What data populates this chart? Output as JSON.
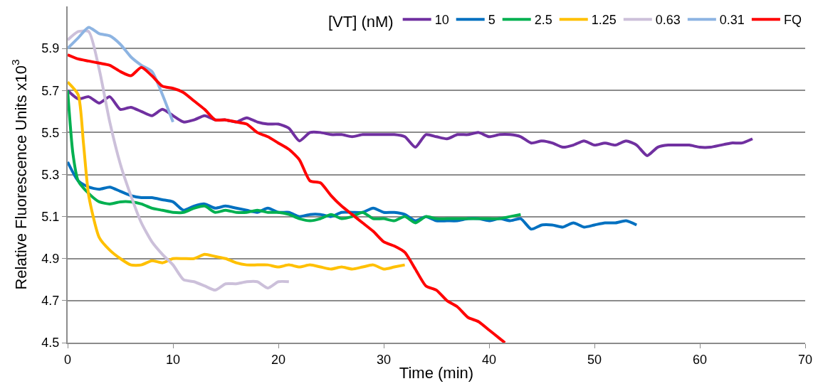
{
  "chart_data": {
    "type": "line",
    "xlabel": "Time (min)",
    "ylabel": "Relative Fluorescence Units x10$^{3}$",
    "legend_title": "[VT] (nM)",
    "legend": "top right",
    "grid": "y",
    "marker": "none",
    "line_style": "solid",
    "xlim": [
      0,
      70
    ],
    "xticks": [
      0,
      10,
      20,
      30,
      40,
      50,
      60,
      70
    ],
    "ylim": [
      4.5,
      6.1
    ],
    "yticks": [
      4.5,
      4.7,
      4.9,
      5.1,
      5.3,
      5.5,
      5.7,
      5.9
    ],
    "series": [
      {
        "name": "10",
        "color": "#7030a0",
        "x": [
          0,
          1,
          2,
          3,
          4,
          5,
          6,
          7,
          8,
          9,
          10,
          11,
          12,
          13,
          14,
          15,
          16,
          17,
          18,
          19,
          20,
          21,
          22,
          23,
          24,
          25,
          26,
          27,
          28,
          29,
          30,
          31,
          32,
          33,
          34,
          35,
          36,
          37,
          38,
          39,
          40,
          41,
          42,
          43,
          44,
          45,
          46,
          47,
          48,
          49,
          50,
          51,
          52,
          53,
          54,
          55,
          56,
          57,
          58,
          59,
          60,
          61,
          62,
          63,
          64,
          65
        ],
        "values": [
          5.7,
          5.66,
          5.67,
          5.64,
          5.67,
          5.61,
          5.62,
          5.6,
          5.58,
          5.61,
          5.58,
          5.55,
          5.56,
          5.58,
          5.56,
          5.56,
          5.55,
          5.57,
          5.55,
          5.54,
          5.54,
          5.52,
          5.46,
          5.5,
          5.5,
          5.49,
          5.49,
          5.48,
          5.49,
          5.49,
          5.49,
          5.49,
          5.48,
          5.43,
          5.49,
          5.48,
          5.47,
          5.49,
          5.49,
          5.5,
          5.48,
          5.49,
          5.49,
          5.48,
          5.45,
          5.46,
          5.45,
          5.43,
          5.44,
          5.46,
          5.44,
          5.45,
          5.44,
          5.46,
          5.44,
          5.39,
          5.43,
          5.44,
          5.44,
          5.44,
          5.43,
          5.43,
          5.44,
          5.45,
          5.45,
          5.47
        ]
      },
      {
        "name": "5",
        "color": "#0070c0",
        "x": [
          0,
          1,
          2,
          3,
          4,
          5,
          6,
          7,
          8,
          9,
          10,
          11,
          12,
          13,
          14,
          15,
          16,
          17,
          18,
          19,
          20,
          21,
          22,
          23,
          24,
          25,
          26,
          27,
          28,
          29,
          30,
          31,
          32,
          33,
          34,
          35,
          36,
          37,
          38,
          39,
          40,
          41,
          42,
          43,
          44,
          45,
          46,
          47,
          48,
          49,
          50,
          51,
          52,
          53,
          54
        ],
        "values": [
          5.36,
          5.27,
          5.24,
          5.23,
          5.24,
          5.22,
          5.2,
          5.19,
          5.19,
          5.18,
          5.17,
          5.13,
          5.15,
          5.16,
          5.14,
          5.15,
          5.14,
          5.13,
          5.12,
          5.14,
          5.12,
          5.12,
          5.1,
          5.11,
          5.11,
          5.1,
          5.12,
          5.12,
          5.12,
          5.14,
          5.12,
          5.12,
          5.11,
          5.08,
          5.1,
          5.08,
          5.08,
          5.08,
          5.09,
          5.09,
          5.08,
          5.09,
          5.08,
          5.09,
          5.04,
          5.06,
          5.06,
          5.05,
          5.07,
          5.05,
          5.06,
          5.07,
          5.07,
          5.08,
          5.06
        ]
      },
      {
        "name": "2.5",
        "color": "#00b050",
        "x": [
          0,
          0.5,
          1,
          2,
          3,
          4,
          5,
          6,
          7,
          8,
          9,
          10,
          11,
          12,
          13,
          14,
          15,
          16,
          17,
          18,
          19,
          20,
          21,
          22,
          23,
          24,
          25,
          26,
          27,
          28,
          29,
          30,
          31,
          32,
          33,
          34,
          35,
          36,
          37,
          38,
          39,
          40,
          41,
          42,
          43
        ],
        "values": [
          5.7,
          5.4,
          5.27,
          5.21,
          5.17,
          5.16,
          5.17,
          5.17,
          5.16,
          5.14,
          5.13,
          5.12,
          5.12,
          5.14,
          5.15,
          5.12,
          5.13,
          5.12,
          5.12,
          5.13,
          5.12,
          5.12,
          5.11,
          5.09,
          5.08,
          5.09,
          5.11,
          5.09,
          5.1,
          5.12,
          5.09,
          5.09,
          5.08,
          5.1,
          5.07,
          5.1,
          5.09,
          5.09,
          5.09,
          5.09,
          5.09,
          5.09,
          5.09,
          5.1,
          5.11
        ]
      },
      {
        "name": "1.25",
        "color": "#ffc000",
        "x": [
          0,
          1,
          1.5,
          2,
          3,
          4,
          5,
          6,
          7,
          8,
          9,
          10,
          11,
          12,
          13,
          14,
          15,
          16,
          17,
          18,
          19,
          20,
          21,
          22,
          23,
          24,
          25,
          26,
          27,
          28,
          29,
          30,
          31,
          32
        ],
        "values": [
          5.74,
          5.68,
          5.45,
          5.2,
          5.0,
          4.94,
          4.9,
          4.87,
          4.87,
          4.89,
          4.88,
          4.9,
          4.9,
          4.9,
          4.92,
          4.91,
          4.9,
          4.88,
          4.87,
          4.87,
          4.87,
          4.86,
          4.87,
          4.86,
          4.87,
          4.86,
          4.85,
          4.86,
          4.85,
          4.86,
          4.87,
          4.85,
          4.86,
          4.87
        ]
      },
      {
        "name": "0.63",
        "color": "#ccc0da",
        "x": [
          0,
          1,
          2,
          3,
          4,
          5,
          6,
          7,
          8,
          9,
          10,
          11,
          12,
          13,
          14,
          15,
          16,
          17,
          18,
          19,
          20,
          21
        ],
        "values": [
          5.94,
          5.98,
          5.98,
          5.8,
          5.55,
          5.35,
          5.2,
          5.07,
          4.98,
          4.92,
          4.87,
          4.8,
          4.79,
          4.77,
          4.75,
          4.78,
          4.78,
          4.79,
          4.79,
          4.76,
          4.79,
          4.79
        ]
      },
      {
        "name": "0.31",
        "color": "#8db4e2",
        "x": [
          0,
          1,
          2,
          3,
          4,
          5,
          6,
          7,
          8,
          9,
          10
        ],
        "values": [
          5.9,
          5.95,
          6.0,
          5.97,
          5.96,
          5.92,
          5.86,
          5.82,
          5.79,
          5.68,
          5.55
        ]
      },
      {
        "name": "FQ",
        "color": "#ff0000",
        "x": [
          0,
          1,
          2,
          3,
          4,
          5,
          6,
          7,
          8,
          9,
          10,
          11,
          12,
          13,
          14,
          15,
          16,
          17,
          18,
          19,
          20,
          21,
          22,
          23,
          24,
          25,
          26,
          27,
          28,
          29,
          30,
          31,
          32,
          33,
          34,
          35,
          36,
          37,
          38,
          39,
          40,
          41,
          41.5
        ],
        "values": [
          5.87,
          5.85,
          5.84,
          5.83,
          5.82,
          5.79,
          5.77,
          5.81,
          5.77,
          5.72,
          5.71,
          5.69,
          5.65,
          5.61,
          5.56,
          5.56,
          5.55,
          5.54,
          5.5,
          5.48,
          5.45,
          5.42,
          5.37,
          5.27,
          5.26,
          5.2,
          5.15,
          5.11,
          5.07,
          5.03,
          4.98,
          4.96,
          4.93,
          4.85,
          4.77,
          4.75,
          4.7,
          4.67,
          4.62,
          4.6,
          4.56,
          4.52,
          4.5
        ]
      }
    ]
  }
}
